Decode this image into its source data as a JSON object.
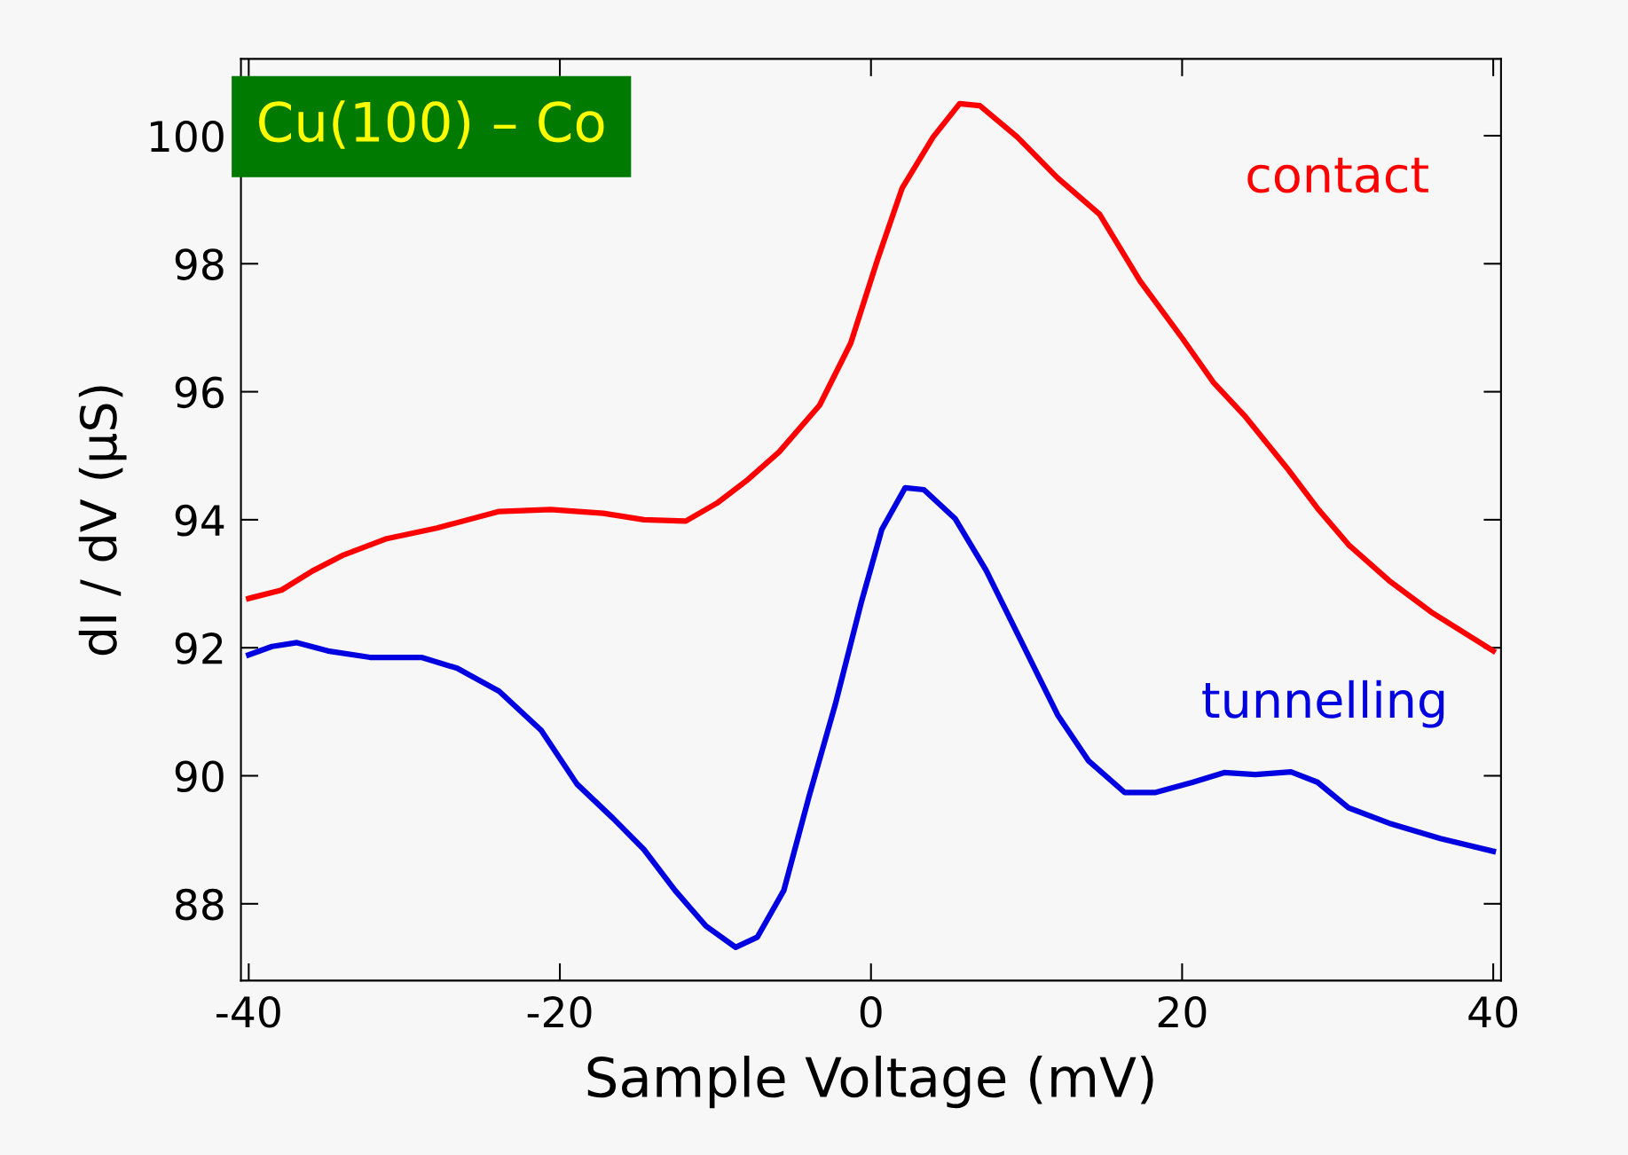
{
  "chart_data": {
    "type": "line",
    "xlabel": "Sample Voltage (mV)",
    "ylabel": "dI / dV (µS)",
    "annotations": [
      "Cu(100) – Co"
    ],
    "xlim": [
      -40.5,
      40.5
    ],
    "ylim": [
      86.8,
      101.2
    ],
    "xticks": [
      -40,
      -20,
      0,
      20,
      40
    ],
    "yticks": [
      88,
      90,
      92,
      94,
      96,
      98,
      100
    ],
    "grid": false,
    "legend": false,
    "marker": "none",
    "line_style": "solid",
    "series": [
      {
        "name": "contact",
        "color": "#ff0000",
        "x": [
          -40,
          -37.9,
          -35.9,
          -33.9,
          -31.2,
          -27.9,
          -23.9,
          -20.6,
          -17.2,
          -14.6,
          -11.9,
          -9.9,
          -7.9,
          -5.9,
          -3.3,
          -1.3,
          0.4,
          2.0,
          4.0,
          5.7,
          7.0,
          9.4,
          12.0,
          14.7,
          17.3,
          20.0,
          22.0,
          24.0,
          26.7,
          28.7,
          30.7,
          33.3,
          36.0,
          40
        ],
        "values": [
          92.77,
          92.9,
          93.2,
          93.45,
          93.7,
          93.87,
          94.13,
          94.16,
          94.1,
          94.0,
          93.98,
          94.26,
          94.63,
          95.06,
          95.79,
          96.76,
          98.05,
          99.18,
          99.98,
          100.5,
          100.47,
          99.98,
          99.34,
          98.77,
          97.73,
          96.84,
          96.15,
          95.63,
          94.82,
          94.18,
          93.61,
          93.05,
          92.56,
          91.95
        ]
      },
      {
        "name": "tunnelling",
        "color": "#0000e0",
        "x": [
          -40,
          -38.5,
          -36.9,
          -34.9,
          -32.2,
          -28.9,
          -26.6,
          -23.9,
          -21.2,
          -18.9,
          -16.6,
          -14.6,
          -12.6,
          -10.6,
          -8.7,
          -7.3,
          -5.6,
          -4.0,
          -2.3,
          -0.6,
          0.7,
          2.2,
          3.4,
          5.4,
          7.4,
          9.7,
          12.0,
          14.0,
          16.3,
          18.3,
          20.7,
          22.7,
          24.7,
          27.0,
          28.7,
          30.7,
          33.3,
          36.6,
          40
        ],
        "values": [
          91.89,
          92.02,
          92.08,
          91.95,
          91.85,
          91.85,
          91.68,
          91.32,
          90.71,
          89.87,
          89.34,
          88.85,
          88.21,
          87.65,
          87.32,
          87.48,
          88.21,
          89.66,
          91.11,
          92.73,
          93.85,
          94.5,
          94.47,
          94.02,
          93.21,
          92.08,
          90.95,
          90.23,
          89.74,
          89.74,
          89.9,
          90.05,
          90.02,
          90.06,
          89.9,
          89.5,
          89.26,
          89.02,
          88.82
        ]
      }
    ]
  }
}
